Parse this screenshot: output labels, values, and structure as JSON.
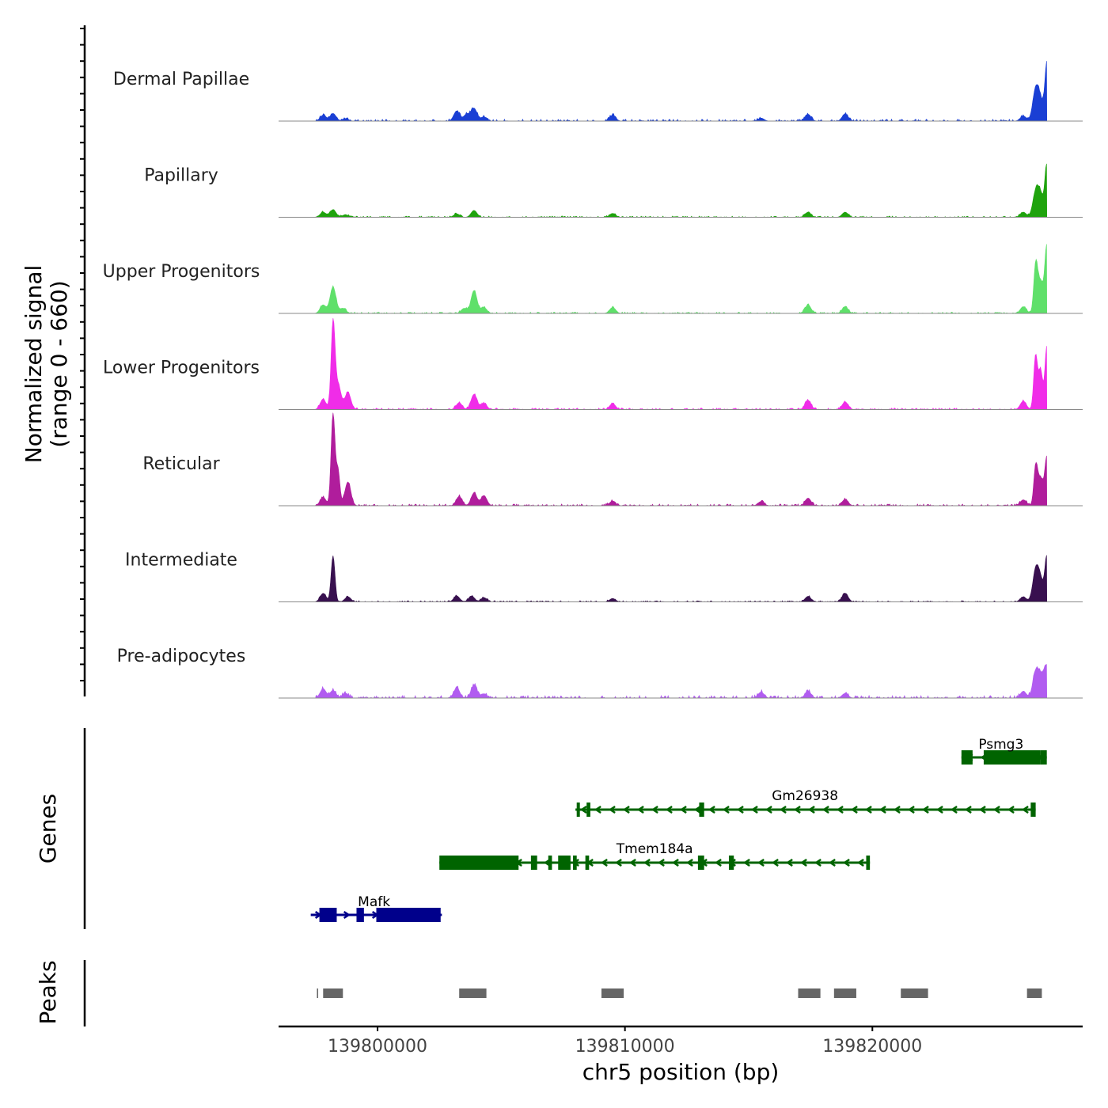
{
  "chart_data": {
    "type": "area",
    "title": "",
    "xlabel": "chr5 position (bp)",
    "ylabel": "Normalized signal",
    "ylabel_range": "(range 0 - 660)",
    "xlim": [
      139796000,
      139828500
    ],
    "ylim": [
      0,
      660
    ],
    "x_ticks": [
      139800000,
      139810000,
      139820000
    ],
    "x_tick_labels": [
      "139800000",
      "139810000",
      "139820000"
    ],
    "tracks": [
      {
        "name": "Dermal Papillae",
        "color": "#1a3fd4",
        "peaks": [
          [
            139797800,
            70
          ],
          [
            139798200,
            90
          ],
          [
            139798700,
            30
          ],
          [
            139803200,
            120
          ],
          [
            139803600,
            80
          ],
          [
            139803900,
            150
          ],
          [
            139804300,
            50
          ],
          [
            139809500,
            70
          ],
          [
            139815500,
            35
          ],
          [
            139817400,
            80
          ],
          [
            139818900,
            85
          ],
          [
            139826100,
            60
          ],
          [
            139826600,
            360
          ],
          [
            139826800,
            220
          ],
          [
            139827050,
            660
          ]
        ],
        "noise": 22
      },
      {
        "name": "Papillary",
        "color": "#1fa30d",
        "peaks": [
          [
            139797800,
            60
          ],
          [
            139798200,
            90
          ],
          [
            139798700,
            30
          ],
          [
            139803200,
            40
          ],
          [
            139803900,
            80
          ],
          [
            139809500,
            45
          ],
          [
            139817400,
            60
          ],
          [
            139818900,
            60
          ],
          [
            139826100,
            60
          ],
          [
            139826600,
            280
          ],
          [
            139826800,
            250
          ],
          [
            139827050,
            600
          ]
        ],
        "noise": 14
      },
      {
        "name": "Upper Progenitors",
        "color": "#5fe06a",
        "peaks": [
          [
            139797800,
            100
          ],
          [
            139798200,
            310
          ],
          [
            139798600,
            60
          ],
          [
            139803500,
            60
          ],
          [
            139803900,
            270
          ],
          [
            139804300,
            70
          ],
          [
            139809500,
            70
          ],
          [
            139817400,
            100
          ],
          [
            139818900,
            80
          ],
          [
            139826100,
            80
          ],
          [
            139826600,
            530
          ],
          [
            139826800,
            380
          ],
          [
            139827050,
            770
          ]
        ],
        "noise": 16
      },
      {
        "name": "Lower Progenitors",
        "color": "#f02ce8",
        "peaks": [
          [
            139797800,
            120
          ],
          [
            139798200,
            1000
          ],
          [
            139798400,
            300
          ],
          [
            139798800,
            200
          ],
          [
            139803300,
            80
          ],
          [
            139803900,
            180
          ],
          [
            139804300,
            70
          ],
          [
            139809500,
            70
          ],
          [
            139817400,
            110
          ],
          [
            139818900,
            90
          ],
          [
            139826100,
            100
          ],
          [
            139826600,
            640
          ],
          [
            139826800,
            460
          ],
          [
            139827050,
            750
          ]
        ],
        "noise": 18
      },
      {
        "name": "Reticular",
        "color": "#b01d9c",
        "peaks": [
          [
            139797800,
            100
          ],
          [
            139798200,
            1080
          ],
          [
            139798400,
            420
          ],
          [
            139798800,
            280
          ],
          [
            139803300,
            110
          ],
          [
            139803900,
            150
          ],
          [
            139804300,
            120
          ],
          [
            139809500,
            55
          ],
          [
            139815500,
            50
          ],
          [
            139817400,
            90
          ],
          [
            139818900,
            75
          ],
          [
            139826100,
            70
          ],
          [
            139826600,
            420
          ],
          [
            139826800,
            320
          ],
          [
            139827050,
            540
          ]
        ],
        "noise": 20
      },
      {
        "name": "Intermediate",
        "color": "#38104f",
        "peaks": [
          [
            139797800,
            100
          ],
          [
            139798200,
            540
          ],
          [
            139798800,
            60
          ],
          [
            139803200,
            70
          ],
          [
            139803800,
            70
          ],
          [
            139804300,
            50
          ],
          [
            139809500,
            40
          ],
          [
            139817400,
            65
          ],
          [
            139818900,
            100
          ],
          [
            139826100,
            60
          ],
          [
            139826600,
            360
          ],
          [
            139826800,
            240
          ],
          [
            139827050,
            520
          ]
        ],
        "noise": 14
      },
      {
        "name": "Pre-adipocytes",
        "color": "#b15cf0",
        "peaks": [
          [
            139797800,
            110
          ],
          [
            139798200,
            90
          ],
          [
            139798700,
            50
          ],
          [
            139803200,
            120
          ],
          [
            139803900,
            150
          ],
          [
            139804300,
            50
          ],
          [
            139815500,
            70
          ],
          [
            139817400,
            80
          ],
          [
            139818900,
            55
          ],
          [
            139826100,
            80
          ],
          [
            139826600,
            290
          ],
          [
            139826800,
            200
          ],
          [
            139827050,
            370
          ]
        ],
        "noise": 30
      }
    ],
    "genes_label": "Genes",
    "genes": [
      {
        "name": "Psmg3",
        "strand": "-",
        "color": "#006400",
        "start": 139823600,
        "end": 139827050,
        "exons": [
          [
            139823600,
            139824050
          ],
          [
            139824500,
            139826800
          ],
          [
            139826800,
            139827050
          ]
        ]
      },
      {
        "name": "Gm26938",
        "strand": "-",
        "color": "#006400",
        "start": 139808000,
        "end": 139826600,
        "exons": [
          [
            139808050,
            139808150
          ],
          [
            139808450,
            139808600
          ],
          [
            139813000,
            139813200
          ],
          [
            139826400,
            139826600
          ]
        ]
      },
      {
        "name": "Tmem184a",
        "strand": "-",
        "color": "#006400",
        "start": 139802500,
        "end": 139819900,
        "exons": [
          [
            139802500,
            139805700
          ],
          [
            139806200,
            139806450
          ],
          [
            139806900,
            139807050
          ],
          [
            139807300,
            139807800
          ],
          [
            139807900,
            139808050
          ],
          [
            139808400,
            139808550
          ],
          [
            139812950,
            139813200
          ],
          [
            139814200,
            139814400
          ],
          [
            139819750,
            139819900
          ]
        ]
      },
      {
        "name": "Mafk",
        "strand": "+",
        "color": "#00008b",
        "start": 139797300,
        "end": 139802600,
        "exons": [
          [
            139797650,
            139798350
          ],
          [
            139799150,
            139799450
          ],
          [
            139799950,
            139802550
          ]
        ]
      }
    ],
    "peaks_label": "Peaks",
    "peaks": [
      [
        139797550,
        139797600
      ],
      [
        139797800,
        139798600
      ],
      [
        139803300,
        139804400
      ],
      [
        139809050,
        139809950
      ],
      [
        139817000,
        139817900
      ],
      [
        139818450,
        139819350
      ],
      [
        139821150,
        139822250
      ],
      [
        139826250,
        139826850
      ]
    ]
  }
}
